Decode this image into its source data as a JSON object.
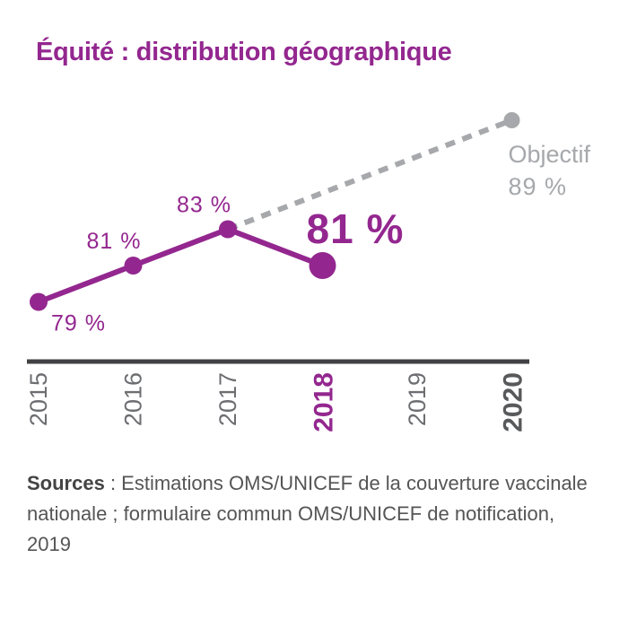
{
  "chart_data": {
    "type": "line",
    "title": "Équité : distribution géographique",
    "x": [
      "2015",
      "2016",
      "2017",
      "2018",
      "2019",
      "2020"
    ],
    "highlight_year": "2018",
    "target_year": "2020",
    "series": [
      {
        "values": [
          79,
          81,
          83,
          81,
          null,
          null
        ],
        "labels": [
          "79 %",
          "81 %",
          "83 %",
          "81 %",
          null,
          null
        ],
        "color": "#93278f"
      }
    ],
    "target": {
      "from_year": "2017",
      "from_value": 83,
      "year": "2020",
      "value": 89,
      "name": "Objectif",
      "label": "89 %",
      "color": "#a6a8ab"
    },
    "ylim": [
      75,
      90
    ]
  },
  "sources": {
    "label": "Sources",
    "text": " : Estimations OMS/UNICEF de la couverture vaccinale nationale ; formulaire commun OMS/UNICEF de notification, 2019"
  },
  "colors": {
    "accent": "#93278f",
    "target": "#a6a8ab",
    "axis": "#414042",
    "tick": "#6d6e71"
  }
}
